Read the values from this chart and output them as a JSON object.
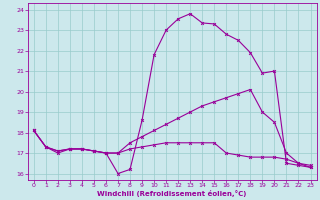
{
  "xlabel": "Windchill (Refroidissement éolien,°C)",
  "xlim": [
    -0.5,
    23.5
  ],
  "ylim": [
    15.7,
    24.3
  ],
  "yticks": [
    16,
    17,
    18,
    19,
    20,
    21,
    22,
    23,
    24
  ],
  "xticks": [
    0,
    1,
    2,
    3,
    4,
    5,
    6,
    7,
    8,
    9,
    10,
    11,
    12,
    13,
    14,
    15,
    16,
    17,
    18,
    19,
    20,
    21,
    22,
    23
  ],
  "bg_color": "#cce8ec",
  "line_color": "#990099",
  "grid_color": "#99cccc",
  "line1_x": [
    0,
    1,
    2,
    3,
    4,
    5,
    6,
    7,
    8,
    9,
    10,
    11,
    12,
    13,
    14,
    15,
    16,
    17,
    18,
    19,
    20,
    21,
    22,
    23
  ],
  "line1_y": [
    18.1,
    17.3,
    17.0,
    17.2,
    17.2,
    17.1,
    17.0,
    16.0,
    16.2,
    18.6,
    21.8,
    23.0,
    23.55,
    23.8,
    23.35,
    23.3,
    22.8,
    22.5,
    21.9,
    20.9,
    21.0,
    16.5,
    16.4,
    16.3
  ],
  "line2_x": [
    0,
    1,
    2,
    3,
    4,
    5,
    6,
    7,
    8,
    9,
    10,
    11,
    12,
    13,
    14,
    15,
    16,
    17,
    18,
    19,
    20,
    21,
    22,
    23
  ],
  "line2_y": [
    18.1,
    17.3,
    17.1,
    17.2,
    17.2,
    17.1,
    17.0,
    17.0,
    17.5,
    17.8,
    18.1,
    18.4,
    18.7,
    19.0,
    19.3,
    19.5,
    19.7,
    19.9,
    20.1,
    19.0,
    18.5,
    17.0,
    16.5,
    16.4
  ],
  "line3_x": [
    0,
    1,
    2,
    3,
    4,
    5,
    6,
    7,
    8,
    9,
    10,
    11,
    12,
    13,
    14,
    15,
    16,
    17,
    18,
    19,
    20,
    21,
    22,
    23
  ],
  "line3_y": [
    18.1,
    17.3,
    17.1,
    17.2,
    17.2,
    17.1,
    17.0,
    17.0,
    17.2,
    17.3,
    17.4,
    17.5,
    17.5,
    17.5,
    17.5,
    17.5,
    17.0,
    16.9,
    16.8,
    16.8,
    16.8,
    16.7,
    16.5,
    16.3
  ]
}
